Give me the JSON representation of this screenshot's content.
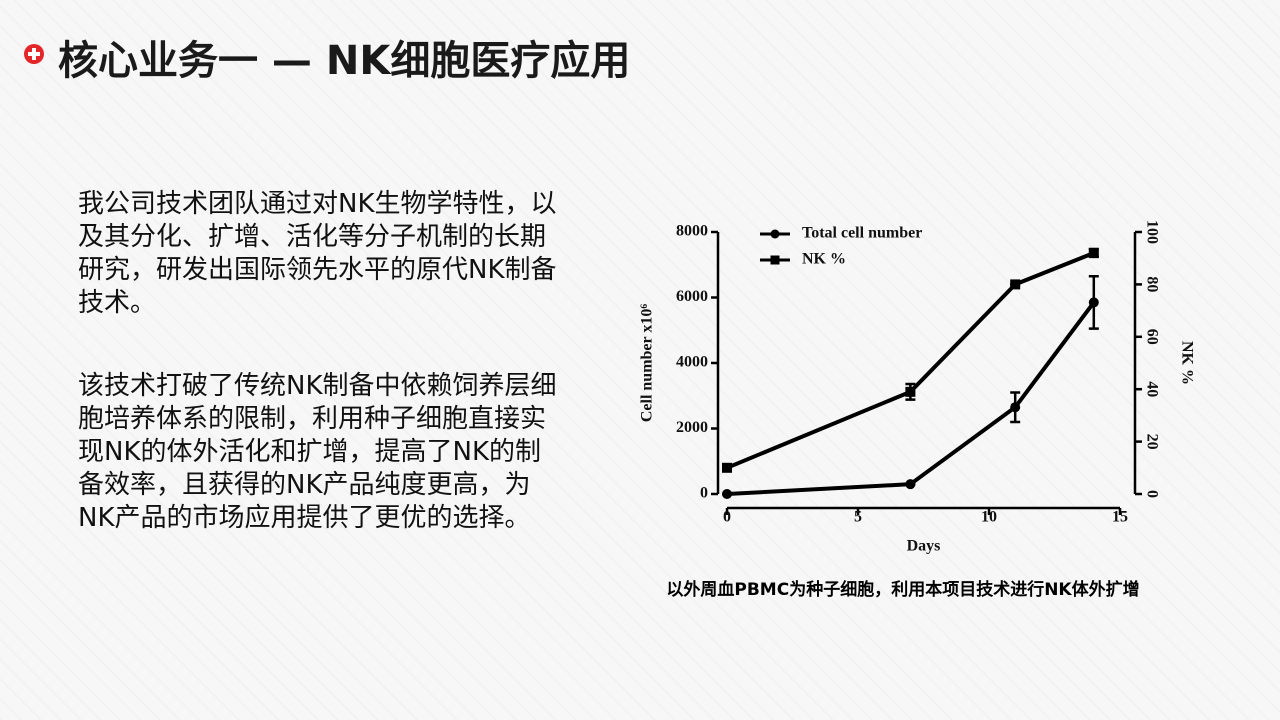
{
  "header": {
    "title": "核心业务一 — NK细胞医疗应用"
  },
  "paragraphs": [
    "我公司技术团队通过对NK生物学特性，以及其分化、扩增、活化等分子机制的长期研究，研发出国际领先水平的原代NK制备技术。",
    "该技术打破了传统NK制备中依赖饲养层细胞培养体系的限制，利用种子细胞直接实现NK的体外活化和扩增，提高了NK的制备效率，且获得的NK产品纯度更高，为NK产品的市场应用提供了更优的选择。"
  ],
  "chart_data": {
    "type": "line",
    "xlabel": "Days",
    "ylabel": "Cell number x10⁶",
    "y2label": "NK %",
    "x": [
      0,
      7,
      11,
      14
    ],
    "xlim": [
      0,
      15
    ],
    "xticks": [
      0,
      5,
      10,
      15
    ],
    "ylim": [
      0,
      8000
    ],
    "yticks": [
      0,
      2000,
      4000,
      6000,
      8000
    ],
    "y2lim": [
      0,
      100
    ],
    "y2ticks": [
      0,
      20,
      40,
      60,
      80,
      100
    ],
    "legend": "upper left",
    "series": [
      {
        "name": "Total cell number",
        "color": "#000000",
        "marker": "circle",
        "values": [
          0,
          300,
          2650,
          5850
        ],
        "errors": [
          0,
          0,
          450,
          800
        ]
      },
      {
        "name": "NK %",
        "color": "#000000",
        "marker": "square",
        "axis": "y2",
        "values": [
          10,
          39,
          80,
          92
        ],
        "errors": [
          0,
          3,
          0,
          1.5
        ]
      }
    ]
  },
  "caption": "以外周血PBMC为种子细胞，利用本项目技术进行NK体外扩增"
}
